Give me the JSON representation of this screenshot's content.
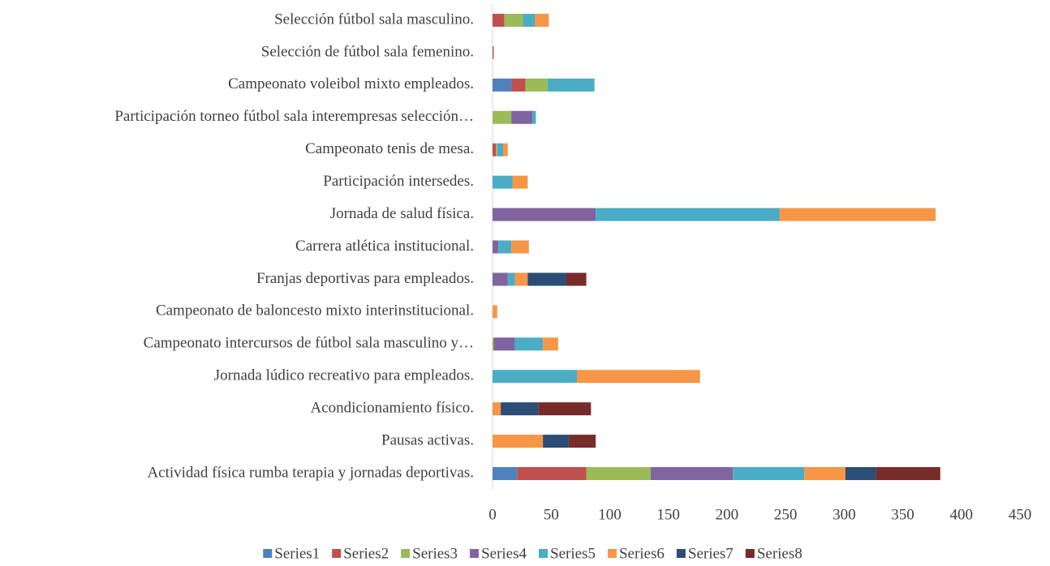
{
  "chart_data": {
    "type": "stacked-bar-horizontal",
    "categories": [
      "Selección fútbol sala masculino.",
      "Selección de fútbol sala femenino.",
      "Campeonato voleibol mixto empleados.",
      "Participación torneo fútbol sala interempresas selección…",
      "Campeonato tenis de mesa.",
      "Participación intersedes.",
      "Jornada de salud física.",
      "Carrera atlética institucional.",
      "Franjas deportivas para empleados.",
      "Campeonato de baloncesto mixto interinstitucional.",
      "Campeonato intercursos de fútbol sala masculino y…",
      "Jornada lúdico recreativo para empleados.",
      "Acondicionamiento físico.",
      "Pausas activas.",
      "Actividad física rumba terapia y jornadas deportivas."
    ],
    "series": [
      {
        "name": "Series1",
        "color": "#4f81bd",
        "values": [
          0,
          0,
          16,
          0,
          0,
          0,
          0,
          0,
          0,
          0,
          0,
          0,
          0,
          0,
          21
        ]
      },
      {
        "name": "Series2",
        "color": "#c0504d",
        "values": [
          10,
          1,
          12,
          0,
          3,
          0,
          0,
          0,
          0,
          0,
          0,
          0,
          0,
          0,
          59
        ]
      },
      {
        "name": "Series3",
        "color": "#9bbb59",
        "values": [
          16,
          0,
          19,
          16,
          1,
          0,
          0,
          0,
          0,
          0,
          1,
          0,
          0,
          0,
          55
        ]
      },
      {
        "name": "Series4",
        "color": "#8064a2",
        "values": [
          0,
          0,
          0,
          18,
          0,
          0,
          88,
          5,
          13,
          0,
          18,
          0,
          0,
          0,
          70
        ]
      },
      {
        "name": "Series5",
        "color": "#4bacc6",
        "values": [
          10,
          0,
          40,
          3,
          5,
          17,
          157,
          11,
          6,
          0,
          24,
          72,
          0,
          0,
          61
        ]
      },
      {
        "name": "Series6",
        "color": "#f79646",
        "values": [
          12,
          0,
          0,
          0,
          4,
          13,
          133,
          15,
          11,
          4,
          13,
          105,
          7,
          43,
          35
        ]
      },
      {
        "name": "Series7",
        "color": "#2c4d75",
        "values": [
          0,
          0,
          0,
          0,
          0,
          0,
          0,
          0,
          33,
          0,
          0,
          0,
          32,
          22,
          26
        ]
      },
      {
        "name": "Series8",
        "color": "#772c2a",
        "values": [
          0,
          0,
          0,
          0,
          0,
          0,
          0,
          0,
          17,
          0,
          0,
          0,
          45,
          23,
          55
        ]
      }
    ],
    "xlim": [
      0,
      450
    ],
    "xticks": [
      0,
      50,
      100,
      150,
      200,
      250,
      300,
      350,
      400,
      450
    ],
    "legend": "bottom"
  }
}
